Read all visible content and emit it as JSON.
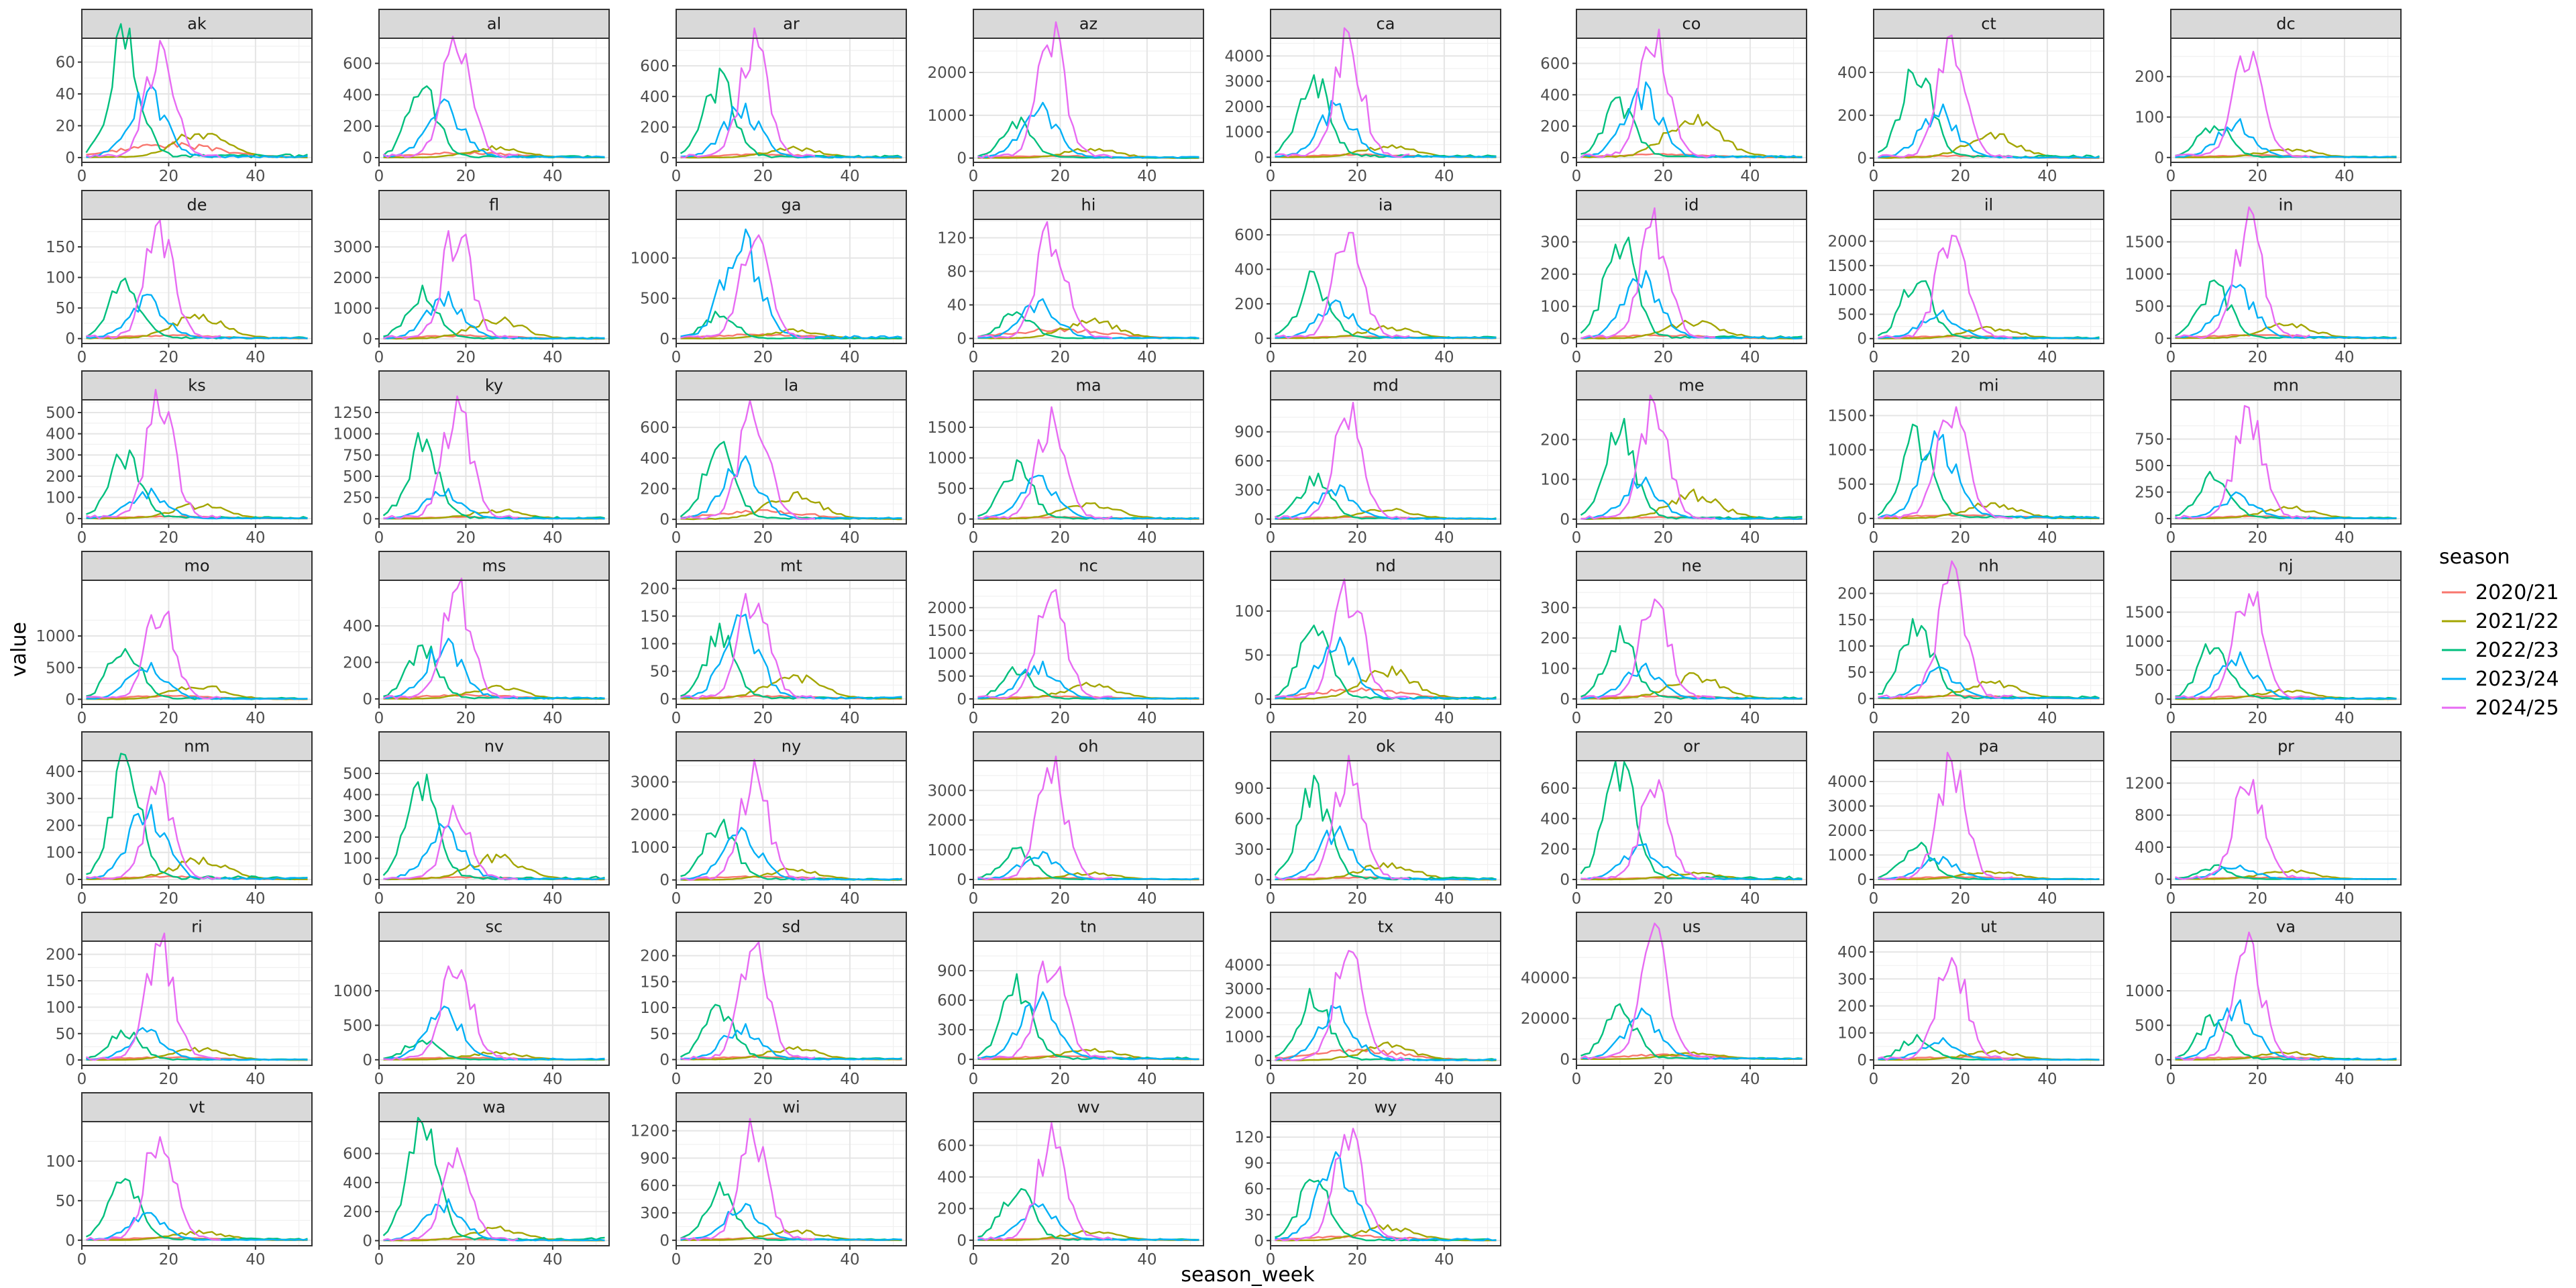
{
  "chart_data": {
    "type": "line",
    "xlabel": "season_week",
    "ylabel": "value",
    "grid": true,
    "legend_position": "right",
    "legend": {
      "title": "season",
      "entries": [
        {
          "name": "2020/21",
          "color": "#F8766D"
        },
        {
          "name": "2021/22",
          "color": "#A3A500"
        },
        {
          "name": "2022/23",
          "color": "#00BF7D"
        },
        {
          "name": "2023/24",
          "color": "#00B0F6"
        },
        {
          "name": "2024/25",
          "color": "#E76BF3"
        }
      ]
    },
    "x_ticks": [
      0,
      20,
      40
    ],
    "xlim": [
      0,
      53
    ],
    "panels": [
      {
        "label": "ak",
        "y_ticks": [
          0,
          20,
          40,
          60
        ],
        "ylim": [
          -3,
          75
        ],
        "peaks": [
          8,
          15,
          73,
          38,
          62
        ]
      },
      {
        "label": "al",
        "y_ticks": [
          0,
          200,
          400,
          600
        ],
        "ylim": [
          -30,
          760
        ],
        "peaks": [
          30,
          60,
          400,
          300,
          730
        ]
      },
      {
        "label": "ar",
        "y_ticks": [
          0,
          200,
          400,
          600
        ],
        "ylim": [
          -30,
          780
        ],
        "peaks": [
          20,
          60,
          470,
          300,
          730
        ]
      },
      {
        "label": "az",
        "y_ticks": [
          0,
          1000,
          2000
        ],
        "ylim": [
          -100,
          2800
        ],
        "peaks": [
          50,
          200,
          800,
          1100,
          2650
        ]
      },
      {
        "label": "ca",
        "y_ticks": [
          0,
          1000,
          2000,
          3000,
          4000
        ],
        "ylim": [
          -200,
          4700
        ],
        "peaks": [
          100,
          400,
          3200,
          1800,
          4350
        ]
      },
      {
        "label": "co",
        "y_ticks": [
          0,
          200,
          400,
          600
        ],
        "ylim": [
          -30,
          760
        ],
        "peaks": [
          20,
          260,
          330,
          400,
          740
        ]
      },
      {
        "label": "ct",
        "y_ticks": [
          0,
          200,
          400
        ],
        "ylim": [
          -20,
          560
        ],
        "peaks": [
          10,
          100,
          420,
          210,
          520
        ]
      },
      {
        "label": "dc",
        "y_ticks": [
          0,
          100,
          200
        ],
        "ylim": [
          -12,
          295
        ],
        "peaks": [
          5,
          20,
          80,
          80,
          260
        ]
      },
      {
        "label": "de",
        "y_ticks": [
          0,
          50,
          100,
          150
        ],
        "ylim": [
          -8,
          195
        ],
        "peaks": [
          5,
          35,
          90,
          60,
          180
        ]
      },
      {
        "label": "fl",
        "y_ticks": [
          0,
          1000,
          2000,
          3000
        ],
        "ylim": [
          -150,
          3900
        ],
        "peaks": [
          100,
          600,
          1400,
          1300,
          3500
        ]
      },
      {
        "label": "ga",
        "y_ticks": [
          0,
          500,
          1000
        ],
        "ylim": [
          -60,
          1480
        ],
        "peaks": [
          50,
          100,
          300,
          1150,
          1150
        ]
      },
      {
        "label": "hi",
        "y_ticks": [
          0,
          40,
          80,
          120
        ],
        "ylim": [
          -6,
          142
        ],
        "peaks": [
          10,
          20,
          30,
          40,
          125
        ]
      },
      {
        "label": "ia",
        "y_ticks": [
          0,
          200,
          400,
          600
        ],
        "ylim": [
          -30,
          690
        ],
        "peaks": [
          10,
          60,
          320,
          180,
          600
        ]
      },
      {
        "label": "id",
        "y_ticks": [
          0,
          100,
          200,
          300
        ],
        "ylim": [
          -15,
          370
        ],
        "peaks": [
          10,
          50,
          290,
          180,
          330
        ]
      },
      {
        "label": "il",
        "y_ticks": [
          0,
          500,
          1000,
          1500,
          2000
        ],
        "ylim": [
          -100,
          2450
        ],
        "peaks": [
          50,
          200,
          1150,
          500,
          2200
        ]
      },
      {
        "label": "in",
        "y_ticks": [
          0,
          500,
          1000,
          1500
        ],
        "ylim": [
          -80,
          1850
        ],
        "peaks": [
          50,
          200,
          800,
          700,
          1700
        ]
      },
      {
        "label": "ks",
        "y_ticks": [
          0,
          100,
          200,
          300,
          400,
          500
        ],
        "ylim": [
          -25,
          560
        ],
        "peaks": [
          10,
          60,
          300,
          120,
          520
        ]
      },
      {
        "label": "ky",
        "y_ticks": [
          0,
          250,
          500,
          750,
          1000,
          1250
        ],
        "ylim": [
          -60,
          1400
        ],
        "peaks": [
          20,
          100,
          850,
          300,
          1230
        ]
      },
      {
        "label": "la",
        "y_ticks": [
          0,
          200,
          400,
          600
        ],
        "ylim": [
          -30,
          780
        ],
        "peaks": [
          50,
          150,
          450,
          350,
          720
        ]
      },
      {
        "label": "ma",
        "y_ticks": [
          0,
          500,
          1000,
          1500
        ],
        "ylim": [
          -80,
          1950
        ],
        "peaks": [
          30,
          250,
          800,
          600,
          1600
        ]
      },
      {
        "label": "md",
        "y_ticks": [
          0,
          300,
          600,
          900
        ],
        "ylim": [
          -50,
          1230
        ],
        "peaks": [
          20,
          100,
          400,
          300,
          1050
        ]
      },
      {
        "label": "me",
        "y_ticks": [
          0,
          100,
          200
        ],
        "ylim": [
          -12,
          300
        ],
        "peaks": [
          5,
          60,
          210,
          90,
          260
        ]
      },
      {
        "label": "mi",
        "y_ticks": [
          0,
          500,
          1000,
          1500
        ],
        "ylim": [
          -80,
          1730
        ],
        "peaks": [
          50,
          200,
          1150,
          1050,
          1550
        ]
      },
      {
        "label": "mn",
        "y_ticks": [
          0,
          250,
          500,
          750
        ],
        "ylim": [
          -50,
          1120
        ],
        "peaks": [
          20,
          100,
          450,
          200,
          960
        ]
      },
      {
        "label": "mo",
        "y_ticks": [
          0,
          500,
          1000
        ],
        "ylim": [
          -80,
          1880
        ],
        "peaks": [
          50,
          200,
          850,
          500,
          1380
        ]
      },
      {
        "label": "ms",
        "y_ticks": [
          0,
          200,
          400
        ],
        "ylim": [
          -30,
          650
        ],
        "peaks": [
          20,
          60,
          270,
          280,
          570
        ]
      },
      {
        "label": "mt",
        "y_ticks": [
          0,
          50,
          100,
          150,
          200
        ],
        "ylim": [
          -10,
          215
        ],
        "peaks": [
          5,
          40,
          110,
          130,
          195
        ]
      },
      {
        "label": "nc",
        "y_ticks": [
          0,
          500,
          1000,
          1500,
          2000
        ],
        "ylim": [
          -120,
          2600
        ],
        "peaks": [
          50,
          300,
          600,
          700,
          2250
        ]
      },
      {
        "label": "nd",
        "y_ticks": [
          0,
          50,
          100
        ],
        "ylim": [
          -6,
          135
        ],
        "peaks": [
          10,
          30,
          80,
          60,
          120
        ]
      },
      {
        "label": "ne",
        "y_ticks": [
          0,
          100,
          200,
          300
        ],
        "ylim": [
          -18,
          390
        ],
        "peaks": [
          10,
          70,
          200,
          100,
          325
        ]
      },
      {
        "label": "nh",
        "y_ticks": [
          0,
          50,
          100,
          150,
          200
        ],
        "ylim": [
          -11,
          225
        ],
        "peaks": [
          5,
          30,
          145,
          50,
          210
        ]
      },
      {
        "label": "nj",
        "y_ticks": [
          0,
          500,
          1000,
          1500
        ],
        "ylim": [
          -90,
          2050
        ],
        "peaks": [
          50,
          150,
          900,
          700,
          1850
        ]
      },
      {
        "label": "nm",
        "y_ticks": [
          0,
          100,
          200,
          300,
          400
        ],
        "ylim": [
          -20,
          440
        ],
        "peaks": [
          10,
          70,
          410,
          240,
          330
        ]
      },
      {
        "label": "nv",
        "y_ticks": [
          0,
          100,
          200,
          300,
          400,
          500
        ],
        "ylim": [
          -25,
          560
        ],
        "peaks": [
          10,
          100,
          480,
          220,
          300
        ]
      },
      {
        "label": "ny",
        "y_ticks": [
          0,
          1000,
          2000,
          3000
        ],
        "ylim": [
          -150,
          3650
        ],
        "peaks": [
          100,
          300,
          1750,
          1300,
          3100
        ]
      },
      {
        "label": "oh",
        "y_ticks": [
          0,
          1000,
          2000,
          3000
        ],
        "ylim": [
          -180,
          4000
        ],
        "peaks": [
          50,
          200,
          1000,
          800,
          3500
        ]
      },
      {
        "label": "ok",
        "y_ticks": [
          0,
          300,
          600,
          900
        ],
        "ylim": [
          -50,
          1170
        ],
        "peaks": [
          20,
          150,
          850,
          450,
          1050
        ]
      },
      {
        "label": "or",
        "y_ticks": [
          0,
          200,
          400,
          600
        ],
        "ylim": [
          -35,
          780
        ],
        "peaks": [
          10,
          40,
          680,
          200,
          600
        ]
      },
      {
        "label": "pa",
        "y_ticks": [
          0,
          1000,
          2000,
          3000,
          4000
        ],
        "ylim": [
          -220,
          4850
        ],
        "peaks": [
          100,
          300,
          1300,
          800,
          4350
        ]
      },
      {
        "label": "pr",
        "y_ticks": [
          0,
          400,
          800,
          1200
        ],
        "ylim": [
          -70,
          1480
        ],
        "peaks": [
          20,
          100,
          150,
          150,
          1250
        ]
      },
      {
        "label": "ri",
        "y_ticks": [
          0,
          50,
          100,
          150,
          200
        ],
        "ylim": [
          -10,
          225
        ],
        "peaks": [
          5,
          20,
          55,
          50,
          200
        ]
      },
      {
        "label": "sc",
        "y_ticks": [
          0,
          500,
          1000
        ],
        "ylim": [
          -80,
          1720
        ],
        "peaks": [
          30,
          100,
          300,
          650,
          1450
        ]
      },
      {
        "label": "sd",
        "y_ticks": [
          0,
          50,
          100,
          150,
          200
        ],
        "ylim": [
          -11,
          228
        ],
        "peaks": [
          5,
          20,
          95,
          60,
          205
        ]
      },
      {
        "label": "tn",
        "y_ticks": [
          0,
          300,
          600,
          900
        ],
        "ylim": [
          -60,
          1200
        ],
        "peaks": [
          30,
          100,
          700,
          600,
          1050
        ]
      },
      {
        "label": "tx",
        "y_ticks": [
          0,
          1000,
          2000,
          3000,
          4000
        ],
        "ylim": [
          -200,
          5000
        ],
        "peaks": [
          400,
          600,
          2500,
          2000,
          4500
        ]
      },
      {
        "label": "us",
        "y_ticks": [
          0,
          20000,
          40000
        ],
        "ylim": [
          -3000,
          58000
        ],
        "peaks": [
          2000,
          3000,
          26000,
          20000,
          53000
        ]
      },
      {
        "label": "ut",
        "y_ticks": [
          0,
          100,
          200,
          300,
          400
        ],
        "ylim": [
          -20,
          440
        ],
        "peaks": [
          10,
          30,
          80,
          70,
          380
        ]
      },
      {
        "label": "va",
        "y_ticks": [
          0,
          500,
          1000
        ],
        "ylim": [
          -80,
          1720
        ],
        "peaks": [
          40,
          100,
          600,
          750,
          1500
        ]
      },
      {
        "label": "vt",
        "y_ticks": [
          0,
          50,
          100
        ],
        "ylim": [
          -7,
          150
        ],
        "peaks": [
          3,
          10,
          80,
          30,
          135
        ]
      },
      {
        "label": "wa",
        "y_ticks": [
          0,
          200,
          400,
          600
        ],
        "ylim": [
          -35,
          820
        ],
        "peaks": [
          10,
          80,
          720,
          250,
          530
        ]
      },
      {
        "label": "wi",
        "y_ticks": [
          0,
          300,
          600,
          900,
          1200
        ],
        "ylim": [
          -60,
          1300
        ],
        "peaks": [
          20,
          100,
          500,
          350,
          1150
        ]
      },
      {
        "label": "wv",
        "y_ticks": [
          0,
          200,
          400,
          600
        ],
        "ylim": [
          -35,
          750
        ],
        "peaks": [
          10,
          50,
          320,
          200,
          630
        ]
      },
      {
        "label": "wy",
        "y_ticks": [
          0,
          30,
          60,
          90,
          120
        ],
        "ylim": [
          -6,
          138
        ],
        "peaks": [
          5,
          15,
          65,
          85,
          115
        ]
      }
    ]
  }
}
